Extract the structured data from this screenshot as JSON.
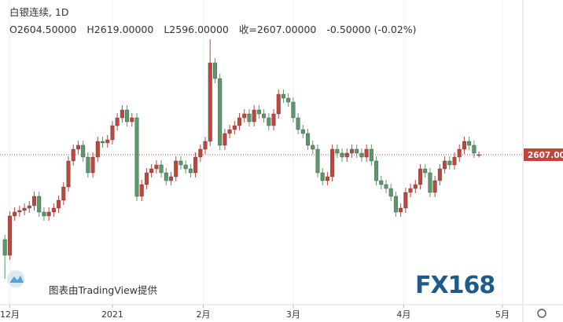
{
  "chart_data": {
    "type": "candlestick",
    "title": "白银连续, 1D",
    "ohlc_text": [
      "O2604.50000",
      "H2619.00000",
      "L2596.00000",
      "收=2607.00000",
      "-0.50000 (-0.02%)"
    ],
    "credit": "图表由TradingView提供",
    "logo": "FX168",
    "up_color": "#c0463c",
    "down_color": "#5a9a6a",
    "last_price": {
      "value": 2607,
      "label": "2607.00"
    },
    "xlim": [
      -1,
      106
    ],
    "ylim": [
      2034,
      3198
    ],
    "xticks": [
      {
        "value": 1,
        "label": "12月"
      },
      {
        "value": 22,
        "label": "2021"
      },
      {
        "value": 40.6,
        "label": "2月"
      },
      {
        "value": 59,
        "label": "3月"
      },
      {
        "value": 81.6,
        "label": "4月"
      },
      {
        "value": 101.8,
        "label": "5月"
      }
    ],
    "open": [
      2283,
      2223,
      2373,
      2388,
      2394,
      2403,
      2412,
      2448,
      2388,
      2373,
      2388,
      2403,
      2433,
      2484,
      2583,
      2628,
      2643,
      2598,
      2538,
      2598,
      2658,
      2652,
      2664,
      2718,
      2748,
      2778,
      2733,
      2748,
      2448,
      2493,
      2538,
      2553,
      2568,
      2538,
      2508,
      2523,
      2583,
      2568,
      2553,
      2538,
      2598,
      2628,
      2658,
      2958,
      2898,
      2643,
      2688,
      2703,
      2718,
      2748,
      2763,
      2733,
      2778,
      2763,
      2748,
      2718,
      2763,
      2838,
      2823,
      2808,
      2748,
      2703,
      2688,
      2643,
      2628,
      2538,
      2508,
      2523,
      2628,
      2613,
      2598,
      2613,
      2628,
      2613,
      2598,
      2628,
      2583,
      2508,
      2493,
      2478,
      2448,
      2388,
      2403,
      2463,
      2478,
      2493,
      2553,
      2538,
      2463,
      2508,
      2553,
      2583,
      2568,
      2598,
      2628,
      2658,
      2643,
      2604.5
    ],
    "high": [
      2301,
      2391,
      2406,
      2412,
      2421,
      2430,
      2466,
      2466,
      2406,
      2406,
      2421,
      2451,
      2502,
      2601,
      2646,
      2661,
      2661,
      2616,
      2616,
      2676,
      2676,
      2682,
      2736,
      2766,
      2796,
      2796,
      2766,
      2766,
      2511,
      2556,
      2571,
      2586,
      2586,
      2556,
      2541,
      2601,
      2601,
      2586,
      2571,
      2616,
      2646,
      2676,
      3048,
      2976,
      2916,
      2706,
      2721,
      2736,
      2766,
      2781,
      2781,
      2796,
      2796,
      2781,
      2766,
      2781,
      2856,
      2856,
      2841,
      2826,
      2766,
      2721,
      2706,
      2661,
      2646,
      2556,
      2541,
      2646,
      2646,
      2631,
      2631,
      2646,
      2646,
      2631,
      2646,
      2646,
      2601,
      2526,
      2511,
      2496,
      2466,
      2421,
      2481,
      2496,
      2511,
      2571,
      2571,
      2556,
      2526,
      2571,
      2601,
      2601,
      2616,
      2646,
      2676,
      2676,
      2661,
      2619
    ],
    "low": [
      2133,
      2205,
      2355,
      2370,
      2376,
      2385,
      2394,
      2370,
      2355,
      2355,
      2370,
      2385,
      2415,
      2466,
      2565,
      2610,
      2580,
      2520,
      2520,
      2580,
      2634,
      2634,
      2646,
      2700,
      2730,
      2715,
      2715,
      2430,
      2430,
      2475,
      2520,
      2535,
      2520,
      2490,
      2490,
      2505,
      2550,
      2535,
      2520,
      2520,
      2580,
      2610,
      2640,
      2880,
      2625,
      2625,
      2670,
      2685,
      2700,
      2730,
      2715,
      2715,
      2745,
      2730,
      2700,
      2700,
      2745,
      2805,
      2790,
      2730,
      2685,
      2670,
      2625,
      2610,
      2520,
      2490,
      2490,
      2505,
      2595,
      2580,
      2580,
      2595,
      2595,
      2580,
      2580,
      2565,
      2490,
      2475,
      2460,
      2430,
      2370,
      2370,
      2385,
      2445,
      2460,
      2475,
      2520,
      2445,
      2445,
      2490,
      2535,
      2550,
      2550,
      2580,
      2610,
      2625,
      2595,
      2596
    ],
    "close": [
      2223,
      2373,
      2388,
      2394,
      2403,
      2412,
      2448,
      2388,
      2373,
      2388,
      2403,
      2433,
      2484,
      2583,
      2628,
      2643,
      2598,
      2538,
      2598,
      2658,
      2652,
      2664,
      2718,
      2748,
      2778,
      2733,
      2748,
      2448,
      2493,
      2538,
      2553,
      2568,
      2538,
      2508,
      2523,
      2583,
      2568,
      2553,
      2538,
      2598,
      2628,
      2658,
      2958,
      2898,
      2643,
      2688,
      2703,
      2718,
      2748,
      2763,
      2733,
      2778,
      2763,
      2748,
      2718,
      2763,
      2838,
      2823,
      2808,
      2748,
      2703,
      2688,
      2643,
      2628,
      2538,
      2508,
      2523,
      2628,
      2613,
      2598,
      2613,
      2628,
      2613,
      2598,
      2628,
      2583,
      2508,
      2493,
      2478,
      2448,
      2388,
      2403,
      2463,
      2478,
      2493,
      2553,
      2538,
      2463,
      2508,
      2553,
      2583,
      2568,
      2598,
      2628,
      2658,
      2643,
      2613,
      2607
    ]
  }
}
